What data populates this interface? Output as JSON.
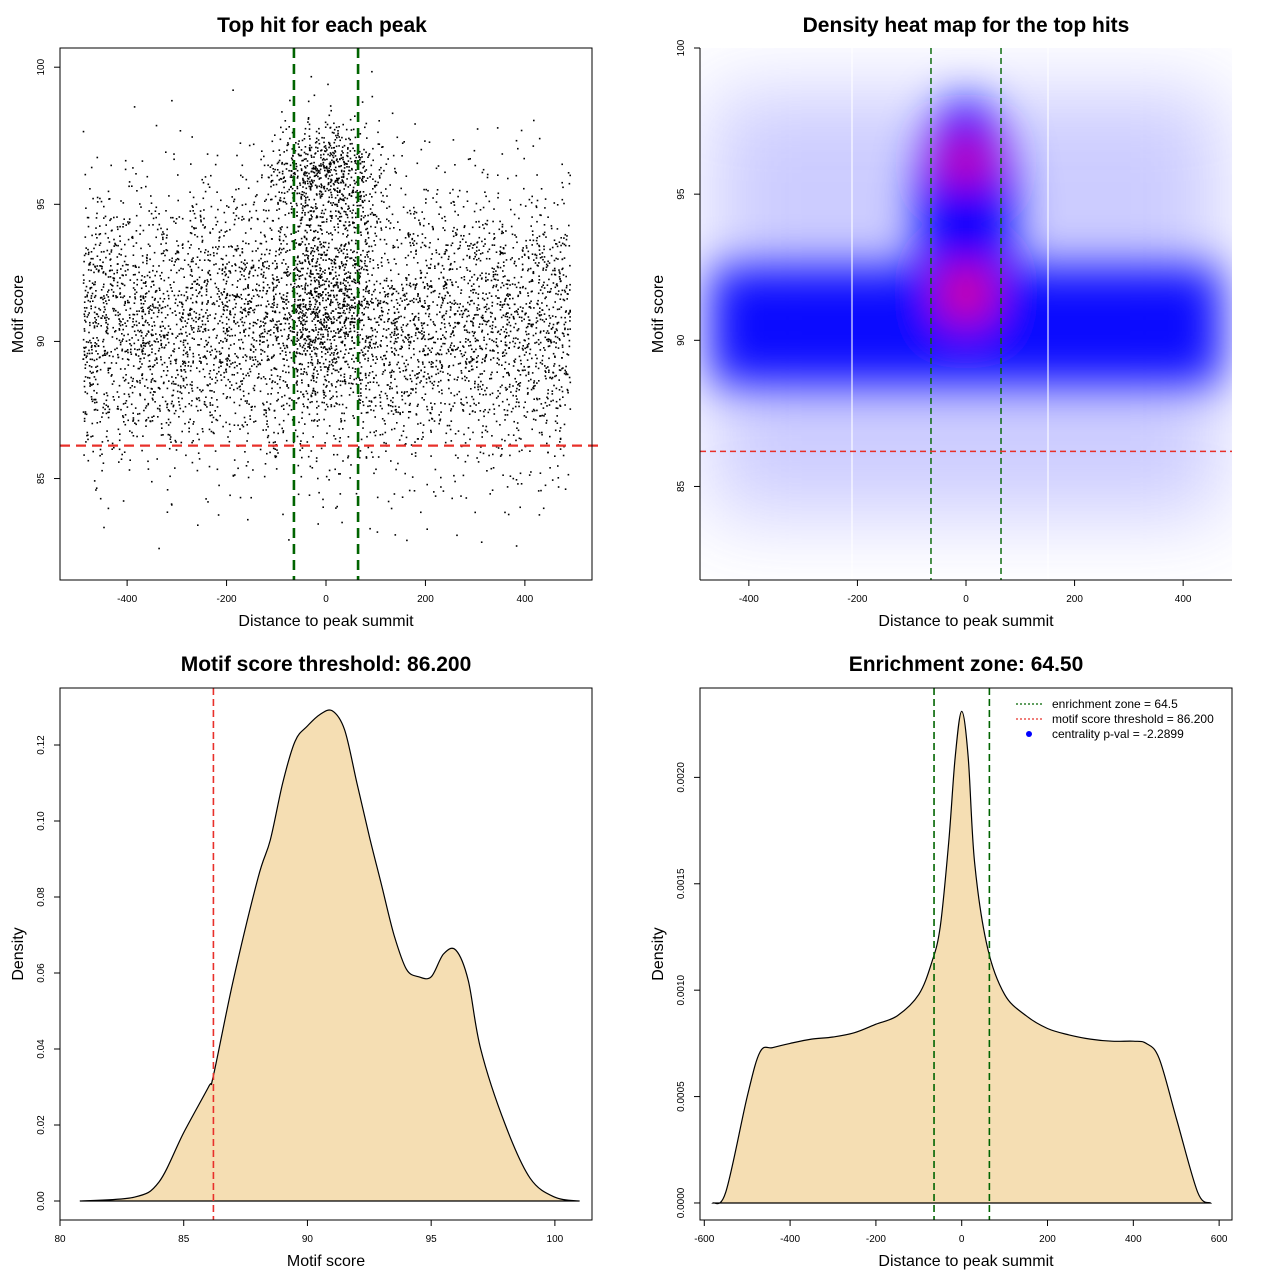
{
  "chart_data": [
    {
      "id": "scatter",
      "type": "scatter",
      "title": "Top hit for each peak",
      "xlabel": "Distance to peak summit",
      "ylabel": "Motif score",
      "xlim": [
        -535,
        535
      ],
      "ylim": [
        81.3,
        100.7
      ],
      "xticks": [
        "-400",
        "-200",
        "0",
        "200",
        "400"
      ],
      "xtick_values": [
        -400,
        -200,
        0,
        200,
        400
      ],
      "yticks": [
        "85",
        "90",
        "95",
        "100"
      ],
      "ytick_values": [
        85,
        90,
        95,
        100
      ],
      "x_range_of_points": [
        -490,
        490
      ],
      "y_range_of_points": [
        82.2,
        99.9
      ],
      "enrichment_lines_x": [
        -64.5,
        64.5
      ],
      "threshold_line_y": 86.2,
      "grid": false,
      "colors": {
        "points": "#000000",
        "enrichment": "#006400",
        "threshold": "#e8302a"
      }
    },
    {
      "id": "heatmap",
      "type": "heatmap",
      "title": "Density heat map for the top hits",
      "xlabel": "Distance to peak summit",
      "ylabel": "Motif score",
      "xlim": [
        -490,
        490
      ],
      "ylim": [
        81.8,
        100.0
      ],
      "xticks": [
        "-400",
        "-200",
        "0",
        "200",
        "400"
      ],
      "xtick_values": [
        -400,
        -200,
        0,
        200,
        400
      ],
      "yticks": [
        "85",
        "90",
        "95",
        "100"
      ],
      "ytick_values": [
        85,
        90,
        95,
        100
      ],
      "density_peaks": [
        {
          "x": 0,
          "y": 96.1,
          "level": "high"
        },
        {
          "x": 0,
          "y": 91.6,
          "level": "high"
        }
      ],
      "dense_band_y": [
        88.5,
        92.5
      ],
      "enrichment_lines_x": [
        -64.5,
        64.5
      ],
      "threshold_line_y": 86.2,
      "colors": {
        "low": "#ffffff",
        "mid": "#0000ff",
        "high": "#ff0000",
        "enrichment": "#006400",
        "threshold": "#e8302a"
      }
    },
    {
      "id": "score-density",
      "type": "area",
      "title": "Motif score threshold: 86.200",
      "xlabel": "Motif score",
      "ylabel": "Density",
      "xlim": [
        80,
        101.5
      ],
      "ylim": [
        -0.005,
        0.135
      ],
      "xticks": [
        "80",
        "85",
        "90",
        "95",
        "100"
      ],
      "xtick_values": [
        80,
        85,
        90,
        95,
        100
      ],
      "yticks": [
        "0.00",
        "0.02",
        "0.04",
        "0.06",
        "0.08",
        "0.10",
        "0.12"
      ],
      "ytick_values": [
        0,
        0.02,
        0.04,
        0.06,
        0.08,
        0.1,
        0.12
      ],
      "x": [
        80.8,
        83,
        84,
        85,
        86,
        86.2,
        87,
        88,
        88.5,
        89,
        89.5,
        90,
        90.5,
        91,
        91.5,
        92,
        92.5,
        93,
        93.5,
        94,
        94.5,
        95,
        95.5,
        96,
        96.5,
        97,
        98,
        99,
        100,
        101
      ],
      "y": [
        0,
        0.001,
        0.005,
        0.018,
        0.03,
        0.033,
        0.058,
        0.085,
        0.095,
        0.11,
        0.121,
        0.125,
        0.128,
        0.129,
        0.124,
        0.11,
        0.096,
        0.083,
        0.07,
        0.061,
        0.059,
        0.059,
        0.065,
        0.066,
        0.058,
        0.04,
        0.02,
        0.006,
        0.001,
        0
      ],
      "threshold_line_x": 86.2,
      "colors": {
        "fill": "#f5deb3",
        "line": "#000000",
        "threshold": "#e8302a"
      }
    },
    {
      "id": "distance-density",
      "type": "area",
      "title": "Enrichment zone: 64.50",
      "xlabel": "Distance to peak summit",
      "ylabel": "Density",
      "xlim": [
        -610,
        630
      ],
      "ylim": [
        -8e-05,
        0.00242
      ],
      "xticks": [
        "-600",
        "-400",
        "-200",
        "0",
        "200",
        "400",
        "600"
      ],
      "xtick_values": [
        -600,
        -400,
        -200,
        0,
        200,
        400,
        600
      ],
      "yticks": [
        "0.0000",
        "0.0005",
        "0.0010",
        "0.0015",
        "0.0020"
      ],
      "ytick_values": [
        0,
        0.0005,
        0.001,
        0.0015,
        0.002
      ],
      "x": [
        -580,
        -550,
        -500,
        -470,
        -440,
        -400,
        -350,
        -300,
        -250,
        -200,
        -150,
        -100,
        -70,
        -50,
        -30,
        -15,
        0,
        15,
        30,
        60,
        100,
        150,
        200,
        250,
        300,
        350,
        400,
        430,
        460,
        500,
        550,
        580
      ],
      "y": [
        0,
        5e-05,
        0.0005,
        0.00071,
        0.00073,
        0.00075,
        0.00077,
        0.00078,
        0.0008,
        0.00084,
        0.00088,
        0.00098,
        0.00113,
        0.0013,
        0.0017,
        0.0021,
        0.00231,
        0.0021,
        0.0016,
        0.0012,
        0.00098,
        0.00088,
        0.00082,
        0.00079,
        0.00077,
        0.00076,
        0.00076,
        0.00075,
        0.00068,
        0.0004,
        5e-05,
        0
      ],
      "enrichment_lines_x": [
        -64.5,
        64.5
      ],
      "legend": [
        {
          "label": "enrichment zone = 64.5",
          "style": "dotted-line",
          "color": "#006400"
        },
        {
          "label": "motif score threshold = 86.200",
          "style": "dotted-line",
          "color": "#e8302a"
        },
        {
          "label": "centrality p-val = -2.2899",
          "style": "dot",
          "color": "#0000ff"
        }
      ],
      "legend_position": "top-right",
      "colors": {
        "fill": "#f5deb3",
        "line": "#000000",
        "enrichment": "#006400"
      }
    }
  ]
}
